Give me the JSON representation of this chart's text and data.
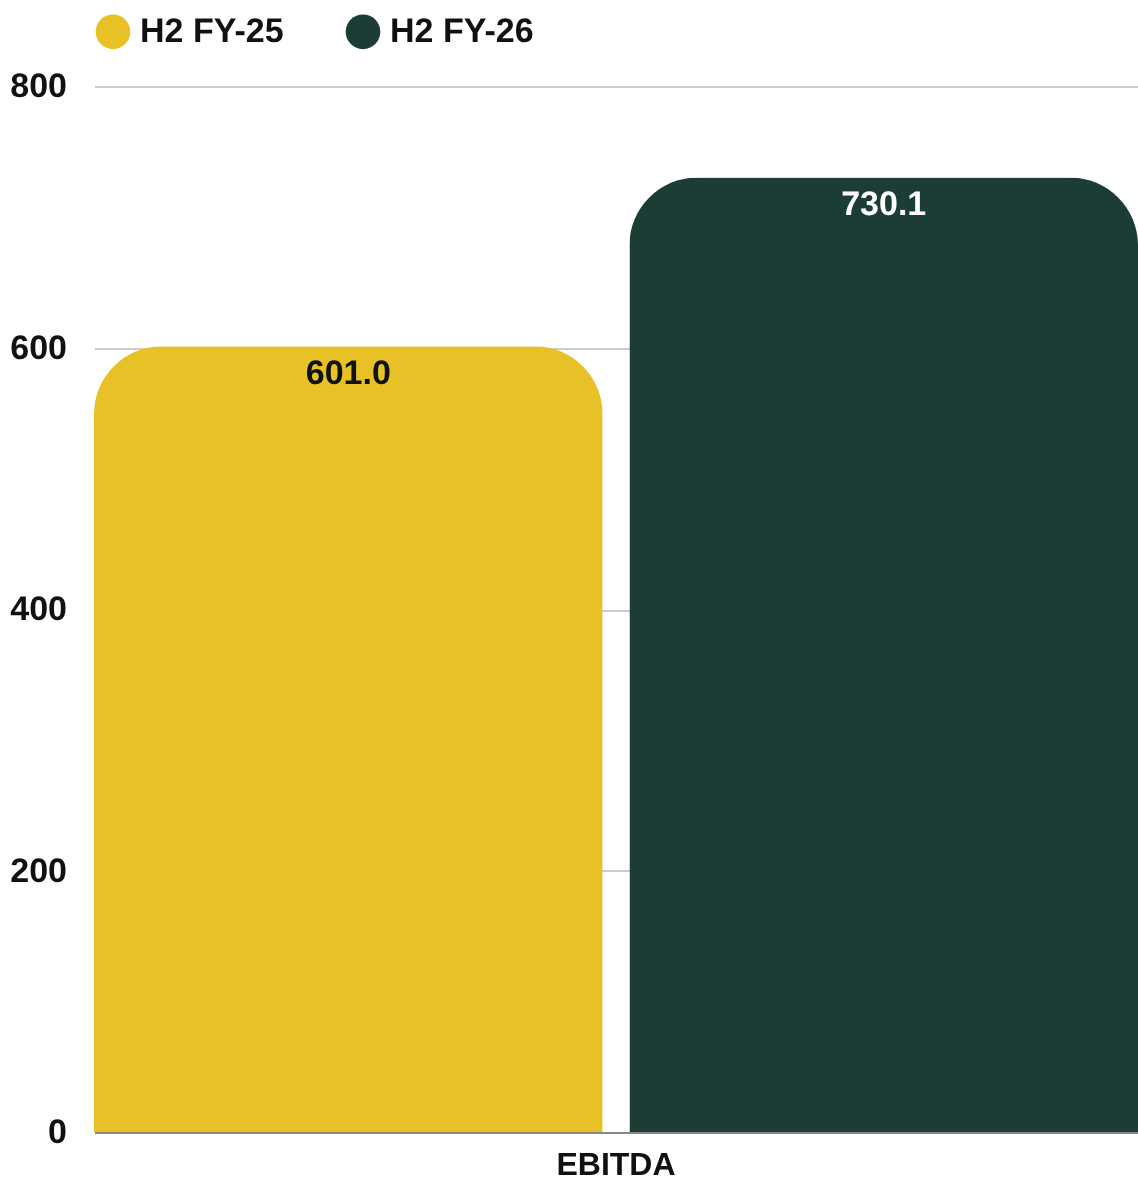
{
  "chart_data": {
    "type": "bar",
    "categories": [
      "EBITDA"
    ],
    "series": [
      {
        "name": "H2 FY-25",
        "color": "#e8c126",
        "values": [
          601.0
        ],
        "value_labels": [
          "601.0"
        ]
      },
      {
        "name": "H2 FY-26",
        "color": "#1b3d36",
        "values": [
          730.1
        ],
        "value_labels": [
          "730.1"
        ]
      }
    ],
    "ylim": [
      0,
      800
    ],
    "yticks": [
      0,
      200,
      400,
      600,
      800
    ],
    "grid": "y",
    "legend": "top"
  }
}
